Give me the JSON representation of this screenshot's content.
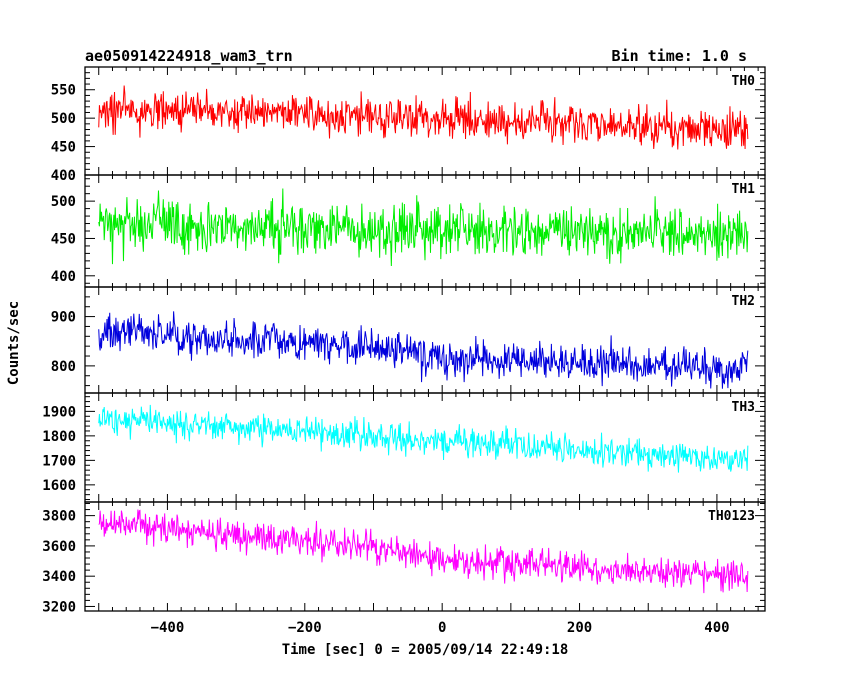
{
  "chart_data": {
    "type": "line",
    "title": "ae050914224918_wam3_trn",
    "subtitle": "Bin time: 1.0 s",
    "xlabel": "Time [sec] 0 = 2005/09/14 22:49:18",
    "ylabel": "Counts/sec",
    "xlim": [
      -520,
      470
    ],
    "x_range": [
      -500,
      445
    ],
    "x_ticks": [
      "−400",
      "−200",
      "0",
      "200",
      "400"
    ],
    "x_tick_values": [
      -400,
      -200,
      0,
      200,
      400
    ],
    "grid": false,
    "panels": [
      {
        "name": "TH0",
        "color": "#ff0000",
        "ylim": [
          400,
          590
        ],
        "y_ticks": [
          "400",
          "450",
          "500",
          "550"
        ],
        "y_tick_values": [
          400,
          450,
          500,
          550
        ],
        "trend": [
          [
            -500,
            515
          ],
          [
            0,
            500
          ],
          [
            445,
            478
          ]
        ],
        "noise": 24
      },
      {
        "name": "TH1",
        "color": "#00ee00",
        "ylim": [
          385,
          535
        ],
        "y_ticks": [
          "400",
          "450",
          "500"
        ],
        "y_tick_values": [
          400,
          450,
          500
        ],
        "trend": [
          [
            -500,
            468
          ],
          [
            0,
            462
          ],
          [
            445,
            455
          ]
        ],
        "noise": 24
      },
      {
        "name": "TH2",
        "color": "#0000dd",
        "ylim": [
          745,
          960
        ],
        "y_ticks": [
          "800",
          "900"
        ],
        "y_tick_values": [
          800,
          900
        ],
        "trend": [
          [
            -500,
            870
          ],
          [
            -100,
            840
          ],
          [
            0,
            815
          ],
          [
            445,
            795
          ]
        ],
        "noise": 27
      },
      {
        "name": "TH3",
        "color": "#00ffff",
        "ylim": [
          1530,
          1975
        ],
        "y_ticks": [
          "1600",
          "1700",
          "1800",
          "1900"
        ],
        "y_tick_values": [
          1600,
          1700,
          1800,
          1900
        ],
        "trend": [
          [
            -500,
            1865
          ],
          [
            0,
            1780
          ],
          [
            445,
            1700
          ]
        ],
        "noise": 42
      },
      {
        "name": "TH0123",
        "color": "#ff00ff",
        "ylim": [
          3170,
          3890
        ],
        "y_ticks": [
          "3200",
          "3400",
          "3600",
          "3800"
        ],
        "y_tick_values": [
          3200,
          3400,
          3600,
          3800
        ],
        "trend": [
          [
            -500,
            3760
          ],
          [
            -100,
            3590
          ],
          [
            0,
            3510
          ],
          [
            445,
            3400
          ]
        ],
        "noise": 70
      }
    ]
  }
}
